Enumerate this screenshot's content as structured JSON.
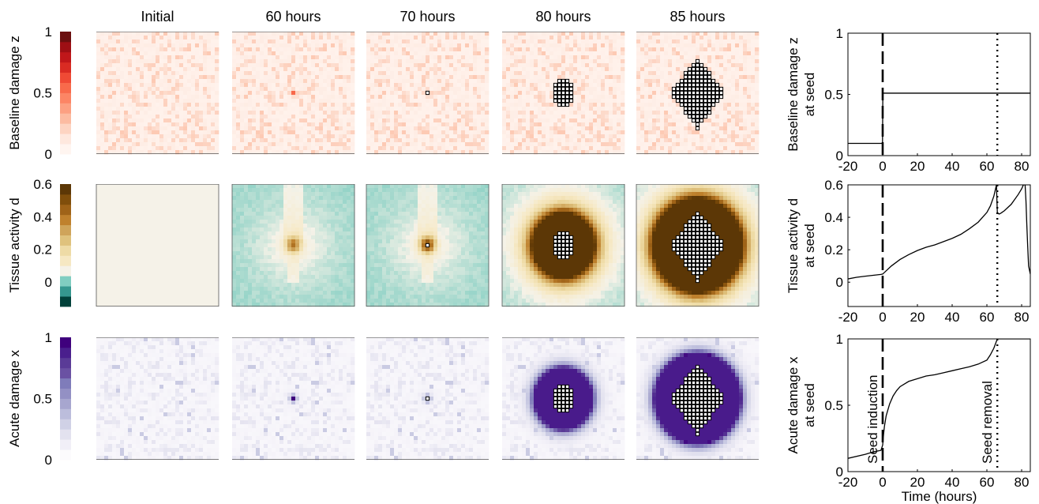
{
  "column_titles": [
    "Initial",
    "60 hours",
    "70 hours",
    "80 hours",
    "85 hours"
  ],
  "rows": [
    {
      "label": "Baseline damage z",
      "colorbar": {
        "ticks": [
          "1",
          "0.5",
          "0"
        ],
        "min": 0,
        "max": 1,
        "colors": [
          "#fff5f0",
          "#fee8de",
          "#fdd4c2",
          "#fcbba1",
          "#fca082",
          "#fc8565",
          "#f86a4b",
          "#ef4a35",
          "#d92b23",
          "#c0171a",
          "#9e0f14",
          "#6b0f0f"
        ]
      },
      "palette": "reds"
    },
    {
      "label": "Tissue activity d",
      "colorbar": {
        "ticks": [
          "0.6",
          "0.4",
          "0.2",
          "0"
        ],
        "min": -0.15,
        "max": 0.6,
        "colors": [
          "#01413a",
          "#35978f",
          "#80cdc1",
          "#f5f2e8",
          "#f6e8c3",
          "#eedba6",
          "#dfc27d",
          "#cfa45a",
          "#bf812d",
          "#9f6318",
          "#804e0b",
          "#5c3706"
        ]
      },
      "palette": "brbg"
    },
    {
      "label": "Acute damage x",
      "colorbar": {
        "ticks": [
          "1",
          "0.5",
          "0"
        ],
        "min": 0,
        "max": 1,
        "colors": [
          "#fcfbfd",
          "#f1eff7",
          "#e3e2ef",
          "#d0d1e6",
          "#bcbddc",
          "#a7a6cf",
          "#9390c4",
          "#7f7cba",
          "#6a51a3",
          "#5a3b97",
          "#4a1f8d",
          "#3f007d"
        ]
      },
      "palette": "purples"
    }
  ],
  "chart_data": [
    {
      "type": "line",
      "ylabel": "Baseline damage z",
      "ylabel2": "at seed",
      "xlabel": "",
      "xlim": [
        -20,
        85
      ],
      "ylim": [
        0,
        1
      ],
      "xticks": [
        "-20",
        "0",
        "20",
        "40",
        "60",
        "80"
      ],
      "yticks": [
        "0",
        "0.5",
        "1"
      ],
      "series": [
        {
          "x": [
            -20,
            -0.1,
            0.1,
            85
          ],
          "y": [
            0.1,
            0.1,
            0.51,
            0.51
          ]
        }
      ],
      "vlines": [
        {
          "x": 0,
          "style": "dashed"
        },
        {
          "x": 66,
          "style": "dotted"
        }
      ],
      "annotations": []
    },
    {
      "type": "line",
      "ylabel": "Tissue activity d",
      "ylabel2": "at seed",
      "xlabel": "",
      "xlim": [
        -20,
        85
      ],
      "ylim": [
        -0.15,
        0.6
      ],
      "xticks": [
        "-20",
        "0",
        "20",
        "40",
        "60",
        "80"
      ],
      "yticks": [
        "0",
        "0.2",
        "0.4",
        "0.6"
      ],
      "series": [
        {
          "x": [
            -20,
            -15,
            -10,
            -5,
            -1,
            0,
            2,
            5,
            10,
            15,
            20,
            25,
            30,
            35,
            40,
            45,
            50,
            55,
            60,
            62,
            64,
            65.5,
            66,
            67,
            68,
            70,
            72,
            74,
            76,
            78,
            80,
            81,
            82,
            82.5,
            83,
            83.5,
            84,
            85
          ],
          "y": [
            0.02,
            0.03,
            0.037,
            0.043,
            0.048,
            0.05,
            0.07,
            0.1,
            0.14,
            0.17,
            0.195,
            0.215,
            0.23,
            0.25,
            0.27,
            0.295,
            0.33,
            0.37,
            0.43,
            0.47,
            0.53,
            0.6,
            0.43,
            0.42,
            0.425,
            0.44,
            0.46,
            0.48,
            0.51,
            0.54,
            0.575,
            0.6,
            0.6,
            0.5,
            0.35,
            0.22,
            0.1,
            0.05
          ]
        }
      ],
      "vlines": [
        {
          "x": 0,
          "style": "dashed"
        },
        {
          "x": 66,
          "style": "dotted"
        }
      ],
      "annotations": []
    },
    {
      "type": "line",
      "ylabel": "Acute damage x",
      "ylabel2": "at seed",
      "xlabel": "Time (hours)",
      "xlim": [
        -20,
        85
      ],
      "ylim": [
        0,
        1
      ],
      "xticks": [
        "-20",
        "0",
        "20",
        "40",
        "60",
        "80"
      ],
      "yticks": [
        "0",
        "0.5",
        "1"
      ],
      "series": [
        {
          "x": [
            -20,
            -10,
            -5,
            -1,
            0,
            0.5,
            1,
            2,
            4,
            6,
            8,
            10,
            15,
            20,
            25,
            30,
            35,
            40,
            45,
            50,
            55,
            60,
            62,
            64,
            66,
            85
          ],
          "y": [
            0.1,
            0.13,
            0.15,
            0.16,
            0.2,
            0.28,
            0.34,
            0.42,
            0.51,
            0.57,
            0.61,
            0.64,
            0.68,
            0.7,
            0.72,
            0.73,
            0.745,
            0.76,
            0.775,
            0.79,
            0.81,
            0.84,
            0.88,
            0.93,
            1.0,
            1.0
          ]
        }
      ],
      "vlines": [
        {
          "x": 0,
          "style": "dashed"
        },
        {
          "x": 66,
          "style": "dotted"
        }
      ],
      "annotations": [
        {
          "text": "Seed induction",
          "x": 0
        },
        {
          "text": "Seed removal",
          "x": 66
        }
      ]
    }
  ]
}
